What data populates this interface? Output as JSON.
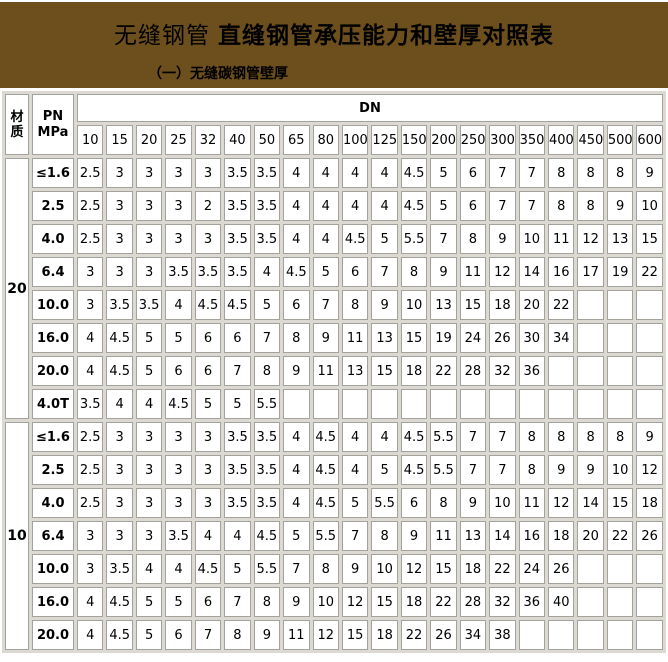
{
  "title": {
    "part1": "无缝钢管",
    "part2": "直缝钢管承压能力和壁厚对照表"
  },
  "subtitle": "（一）无缝碳钢管壁厚",
  "colors": {
    "banner_bg": "#6d4f1d",
    "grid_gap_bg": "#dcd9d3",
    "cell_border": "#a3a29b",
    "cell_bg": "#ffffff",
    "text": "#000000"
  },
  "table": {
    "corner_header": {
      "line1": "材",
      "line2": "质"
    },
    "pn_header": {
      "line1": "PN",
      "line2": "MPa"
    },
    "dn_header": "DN",
    "dn_sizes": [
      "10",
      "15",
      "20",
      "25",
      "32",
      "40",
      "50",
      "65",
      "80",
      "100",
      "125",
      "150",
      "200",
      "250",
      "300",
      "350",
      "400",
      "450",
      "500",
      "600"
    ],
    "sections": [
      {
        "material": "20",
        "rows": [
          {
            "pn": "≤1.6",
            "values": [
              "2.5",
              "3",
              "3",
              "3",
              "3",
              "3.5",
              "3.5",
              "4",
              "4",
              "4",
              "4",
              "4.5",
              "5",
              "6",
              "7",
              "7",
              "8",
              "8",
              "8",
              "9"
            ]
          },
          {
            "pn": "2.5",
            "values": [
              "2.5",
              "3",
              "3",
              "3",
              "2",
              "3.5",
              "3.5",
              "4",
              "4",
              "4",
              "4",
              "4.5",
              "5",
              "6",
              "7",
              "7",
              "8",
              "8",
              "9",
              "10"
            ]
          },
          {
            "pn": "4.0",
            "values": [
              "2.5",
              "3",
              "3",
              "3",
              "3",
              "3.5",
              "3.5",
              "4",
              "4",
              "4.5",
              "5",
              "5.5",
              "7",
              "8",
              "9",
              "10",
              "11",
              "12",
              "13",
              "15"
            ]
          },
          {
            "pn": "6.4",
            "values": [
              "3",
              "3",
              "3",
              "3.5",
              "3.5",
              "3.5",
              "4",
              "4.5",
              "5",
              "6",
              "7",
              "8",
              "9",
              "11",
              "12",
              "14",
              "16",
              "17",
              "19",
              "22"
            ]
          },
          {
            "pn": "10.0",
            "values": [
              "3",
              "3.5",
              "3.5",
              "4",
              "4.5",
              "4.5",
              "5",
              "6",
              "7",
              "8",
              "9",
              "10",
              "13",
              "15",
              "18",
              "20",
              "22",
              "",
              "",
              ""
            ]
          },
          {
            "pn": "16.0",
            "values": [
              "4",
              "4.5",
              "5",
              "5",
              "6",
              "6",
              "7",
              "8",
              "9",
              "11",
              "13",
              "15",
              "19",
              "24",
              "26",
              "30",
              "34",
              "",
              "",
              ""
            ]
          },
          {
            "pn": "20.0",
            "values": [
              "4",
              "4.5",
              "5",
              "6",
              "6",
              "7",
              "8",
              "9",
              "11",
              "13",
              "15",
              "18",
              "22",
              "28",
              "32",
              "36",
              "",
              "",
              "",
              ""
            ]
          },
          {
            "pn": "4.0T",
            "values": [
              "3.5",
              "4",
              "4",
              "4.5",
              "5",
              "5",
              "5.5",
              "",
              "",
              "",
              "",
              "",
              "",
              "",
              "",
              "",
              "",
              "",
              "",
              ""
            ]
          }
        ]
      },
      {
        "material": "10",
        "rows": [
          {
            "pn": "≤1.6",
            "values": [
              "2.5",
              "3",
              "3",
              "3",
              "3",
              "3.5",
              "3.5",
              "4",
              "4.5",
              "4",
              "4",
              "4.5",
              "5.5",
              "7",
              "7",
              "8",
              "8",
              "8",
              "8",
              "9"
            ]
          },
          {
            "pn": "2.5",
            "values": [
              "2.5",
              "3",
              "3",
              "3",
              "3",
              "3.5",
              "3.5",
              "4",
              "4.5",
              "4",
              "5",
              "4.5",
              "5.5",
              "7",
              "7",
              "8",
              "9",
              "9",
              "10",
              "12"
            ]
          },
          {
            "pn": "4.0",
            "values": [
              "2.5",
              "3",
              "3",
              "3",
              "3",
              "3.5",
              "3.5",
              "4",
              "4.5",
              "5",
              "5.5",
              "6",
              "8",
              "9",
              "10",
              "11",
              "12",
              "14",
              "15",
              "18"
            ]
          },
          {
            "pn": "6.4",
            "values": [
              "3",
              "3",
              "3",
              "3.5",
              "4",
              "4",
              "4.5",
              "5",
              "5.5",
              "7",
              "8",
              "9",
              "11",
              "13",
              "14",
              "16",
              "18",
              "20",
              "22",
              "26"
            ]
          },
          {
            "pn": "10.0",
            "values": [
              "3",
              "3.5",
              "4",
              "4",
              "4.5",
              "5",
              "5.5",
              "7",
              "8",
              "9",
              "10",
              "12",
              "15",
              "18",
              "22",
              "24",
              "26",
              "",
              "",
              ""
            ]
          },
          {
            "pn": "16.0",
            "values": [
              "4",
              "4.5",
              "5",
              "5",
              "6",
              "7",
              "8",
              "9",
              "10",
              "12",
              "15",
              "18",
              "22",
              "28",
              "32",
              "36",
              "40",
              "",
              "",
              ""
            ]
          },
          {
            "pn": "20.0",
            "values": [
              "4",
              "4.5",
              "5",
              "6",
              "7",
              "8",
              "9",
              "11",
              "12",
              "15",
              "18",
              "22",
              "26",
              "34",
              "38",
              "",
              "",
              "",
              "",
              ""
            ]
          }
        ]
      }
    ]
  }
}
